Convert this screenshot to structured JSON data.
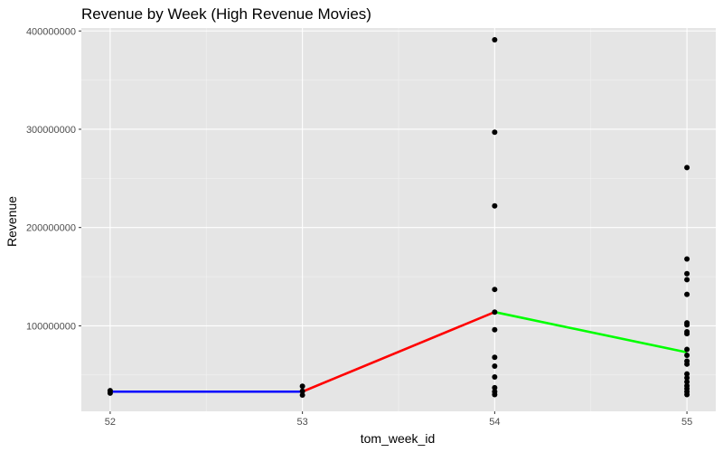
{
  "chart_data": {
    "type": "scatter",
    "title": "Revenue by Week (High Revenue Movies)",
    "xlabel": "tom_week_id",
    "ylabel": "Revenue",
    "xlim": [
      51.85,
      55.15
    ],
    "ylim": [
      13000000,
      403000000
    ],
    "x_ticks": [
      52,
      53,
      54,
      55
    ],
    "y_ticks": [
      100000000,
      200000000,
      300000000,
      400000000
    ],
    "x_tick_labels": [
      "52",
      "53",
      "54",
      "55"
    ],
    "y_tick_labels": [
      "100000000",
      "200000000",
      "300000000",
      "400000000"
    ],
    "grid": true,
    "background": "#e5e5e5",
    "grid_major_color": "#ffffff",
    "points": [
      {
        "x": 52,
        "y": 31500000
      },
      {
        "x": 52,
        "y": 34000000
      },
      {
        "x": 53,
        "y": 29500000
      },
      {
        "x": 53,
        "y": 33500000
      },
      {
        "x": 53,
        "y": 38500000
      },
      {
        "x": 54,
        "y": 391000000
      },
      {
        "x": 54,
        "y": 297000000
      },
      {
        "x": 54,
        "y": 222000000
      },
      {
        "x": 54,
        "y": 137000000
      },
      {
        "x": 54,
        "y": 114000000
      },
      {
        "x": 54,
        "y": 96000000
      },
      {
        "x": 54,
        "y": 68000000
      },
      {
        "x": 54,
        "y": 59000000
      },
      {
        "x": 54,
        "y": 48000000
      },
      {
        "x": 54,
        "y": 37000000
      },
      {
        "x": 54,
        "y": 33000000
      },
      {
        "x": 54,
        "y": 30000000
      },
      {
        "x": 55,
        "y": 261000000
      },
      {
        "x": 55,
        "y": 168000000
      },
      {
        "x": 55,
        "y": 153000000
      },
      {
        "x": 55,
        "y": 147000000
      },
      {
        "x": 55,
        "y": 132000000
      },
      {
        "x": 55,
        "y": 103000000
      },
      {
        "x": 55,
        "y": 101000000
      },
      {
        "x": 55,
        "y": 94000000
      },
      {
        "x": 55,
        "y": 92000000
      },
      {
        "x": 55,
        "y": 76000000
      },
      {
        "x": 55,
        "y": 70000000
      },
      {
        "x": 55,
        "y": 64000000
      },
      {
        "x": 55,
        "y": 61000000
      },
      {
        "x": 55,
        "y": 51000000
      },
      {
        "x": 55,
        "y": 47000000
      },
      {
        "x": 55,
        "y": 43000000
      },
      {
        "x": 55,
        "y": 39000000
      },
      {
        "x": 55,
        "y": 36000000
      },
      {
        "x": 55,
        "y": 33000000
      },
      {
        "x": 55,
        "y": 30000000
      }
    ],
    "point_color": "#000000",
    "segments": [
      {
        "x": [
          52,
          53
        ],
        "y": [
          33000000,
          33000000
        ],
        "color": "#0000ff"
      },
      {
        "x": [
          53,
          54
        ],
        "y": [
          33000000,
          114000000
        ],
        "color": "#ff0000"
      },
      {
        "x": [
          54,
          55
        ],
        "y": [
          114000000,
          73000000
        ],
        "color": "#00ff00"
      }
    ]
  }
}
